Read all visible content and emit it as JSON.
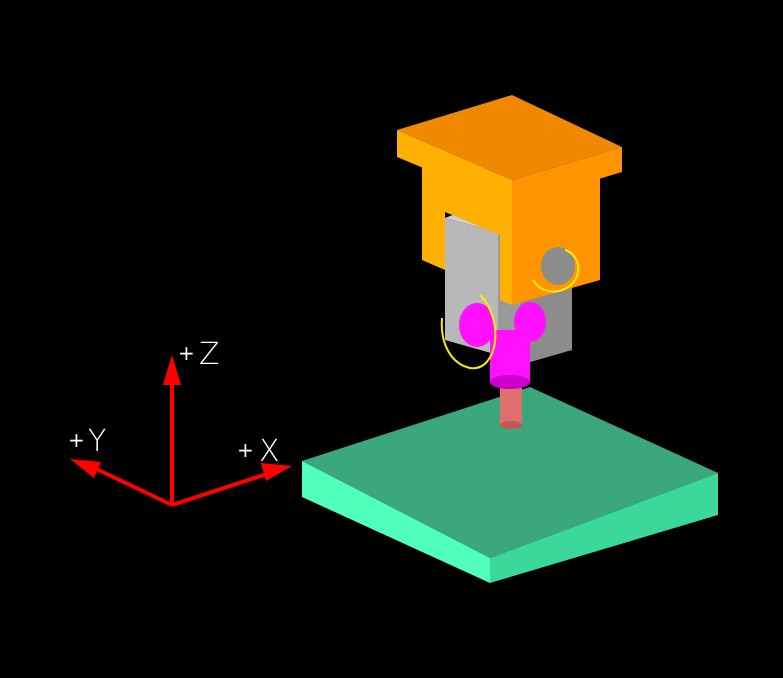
{
  "axes": {
    "z": {
      "sign": "+",
      "name": "Z"
    },
    "y": {
      "sign": "+",
      "name": "Y"
    },
    "x": {
      "sign": "+",
      "name": "X"
    }
  },
  "colors": {
    "background": "#000000",
    "axis": "#ff0000",
    "label": "#ffffff",
    "head_top": "#f08800",
    "head_front": "#ffb000",
    "head_side": "#ff9400",
    "slider_front": "#b8b8b8",
    "slider_side": "#8c8c8c",
    "joint": "#ff10ff",
    "rotation_arc": "#ffee00",
    "spindle": "#e07070",
    "table_top": "#3aa77c",
    "table_side": "#50ffbc",
    "table_front": "#3ad89a"
  }
}
